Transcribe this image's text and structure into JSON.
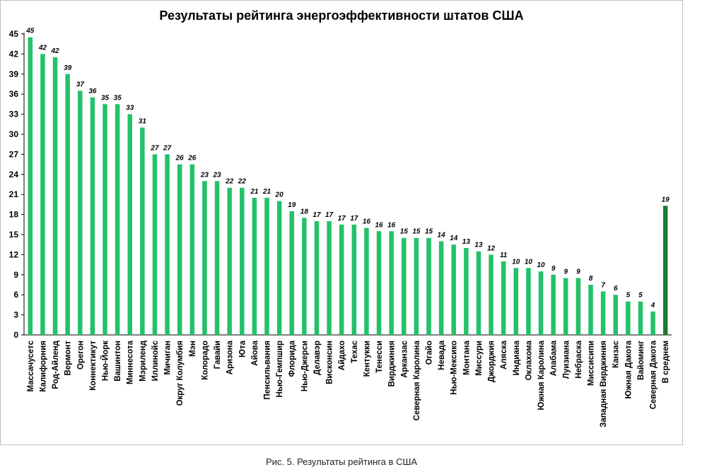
{
  "chart_data": {
    "type": "bar",
    "title": "Результаты рейтинга энергоэффективности штатов США",
    "xlabel": "",
    "ylabel": "",
    "ylim": [
      0,
      45
    ],
    "yticks": [
      0,
      3,
      6,
      9,
      12,
      15,
      18,
      21,
      24,
      27,
      30,
      33,
      36,
      39,
      42,
      45
    ],
    "grid": false,
    "legend": "none",
    "colors": {
      "bar": "#23c16b",
      "highlight": "#1e7b2e"
    },
    "categories": [
      "Массачусетс",
      "Калифорния",
      "Род-Айленд",
      "Вермонт",
      "Орегон",
      "Коннектикут",
      "Нью-Йорк",
      "Вашинтон",
      "Миннесота",
      "Мэриленд",
      "Иллинойс",
      "Мичиган",
      "Округ Колумбия",
      "Мэн",
      "Колорадо",
      "Гавайи",
      "Аризона",
      "Юта",
      "Айова",
      "Пенсильвания",
      "Нью-Гемпшир",
      "Флорида",
      "Нью-Джерси",
      "Делавэр",
      "Висконсин",
      "Айдахо",
      "Техас",
      "Кентукки",
      "Тенесси",
      "Вирджиния",
      "Арканзас",
      "Северная Каролина",
      "Огайо",
      "Невада",
      "Нью-Мексико",
      "Монтана",
      "Миссури",
      "Джорджия",
      "Аляска",
      "Индиана",
      "Оклахома",
      "Южная Каролина",
      "Алабама",
      "Луизиана",
      "Небраска",
      "Миссисипи",
      "Западная Вирджиния",
      "Канзас",
      "Южная Дакота",
      "Вайоминг",
      "Северная Дакота",
      "В среднем"
    ],
    "values": [
      44.5,
      42,
      41.5,
      39,
      36.5,
      35.5,
      34.5,
      34.5,
      33,
      31,
      27,
      27,
      25.5,
      25.5,
      23,
      23,
      22,
      22,
      20.5,
      20.5,
      20,
      18.5,
      17.5,
      17,
      17,
      16.5,
      16.5,
      16,
      15.5,
      15.5,
      14.5,
      14.5,
      14.5,
      14,
      13.5,
      13,
      12.5,
      12,
      11,
      10,
      10,
      9.5,
      9,
      8.5,
      8.5,
      7.5,
      6.5,
      6,
      5,
      5,
      3.5,
      19.3
    ],
    "data_labels": [
      "45",
      "42",
      "42",
      "39",
      "37",
      "36",
      "35",
      "35",
      "33",
      "31",
      "27",
      "27",
      "26",
      "26",
      "23",
      "23",
      "22",
      "22",
      "21",
      "21",
      "20",
      "19",
      "18",
      "17",
      "17",
      "17",
      "17",
      "16",
      "16",
      "16",
      "15",
      "15",
      "15",
      "14",
      "14",
      "13",
      "13",
      "12",
      "11",
      "10",
      "10",
      "10",
      "9",
      "9",
      "9",
      "8",
      "7",
      "6",
      "5",
      "5",
      "4",
      "19"
    ],
    "highlight_index": 51
  },
  "caption": "Рис. 5. Результаты рейтинга в США"
}
